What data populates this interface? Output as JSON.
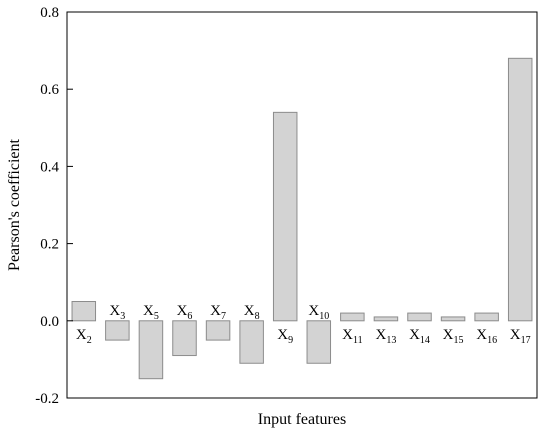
{
  "chart_data": {
    "type": "bar",
    "categories": [
      {
        "base": "X",
        "sub": "2"
      },
      {
        "base": "X",
        "sub": "3"
      },
      {
        "base": "X",
        "sub": "5"
      },
      {
        "base": "X",
        "sub": "6"
      },
      {
        "base": "X",
        "sub": "7"
      },
      {
        "base": "X",
        "sub": "8"
      },
      {
        "base": "X",
        "sub": "9"
      },
      {
        "base": "X",
        "sub": "10"
      },
      {
        "base": "X",
        "sub": "11"
      },
      {
        "base": "X",
        "sub": "13"
      },
      {
        "base": "X",
        "sub": "14"
      },
      {
        "base": "X",
        "sub": "15"
      },
      {
        "base": "X",
        "sub": "16"
      },
      {
        "base": "X",
        "sub": "17"
      }
    ],
    "values": [
      0.05,
      -0.05,
      -0.15,
      -0.09,
      -0.05,
      -0.11,
      0.54,
      -0.11,
      0.02,
      0.01,
      0.02,
      0.01,
      0.02,
      0.68
    ],
    "xlabel": "Input features",
    "ylabel": "Pearson's coefficient",
    "ylim": [
      -0.2,
      0.8
    ],
    "yticks": [
      "-0.2",
      "0.0",
      "0.2",
      "0.4",
      "0.6",
      "0.8"
    ],
    "grid": false,
    "legend": "none",
    "colors": {
      "bar_fill": "#d3d3d3",
      "bar_stroke": "#8c8c8c",
      "axis": "#000000"
    }
  }
}
